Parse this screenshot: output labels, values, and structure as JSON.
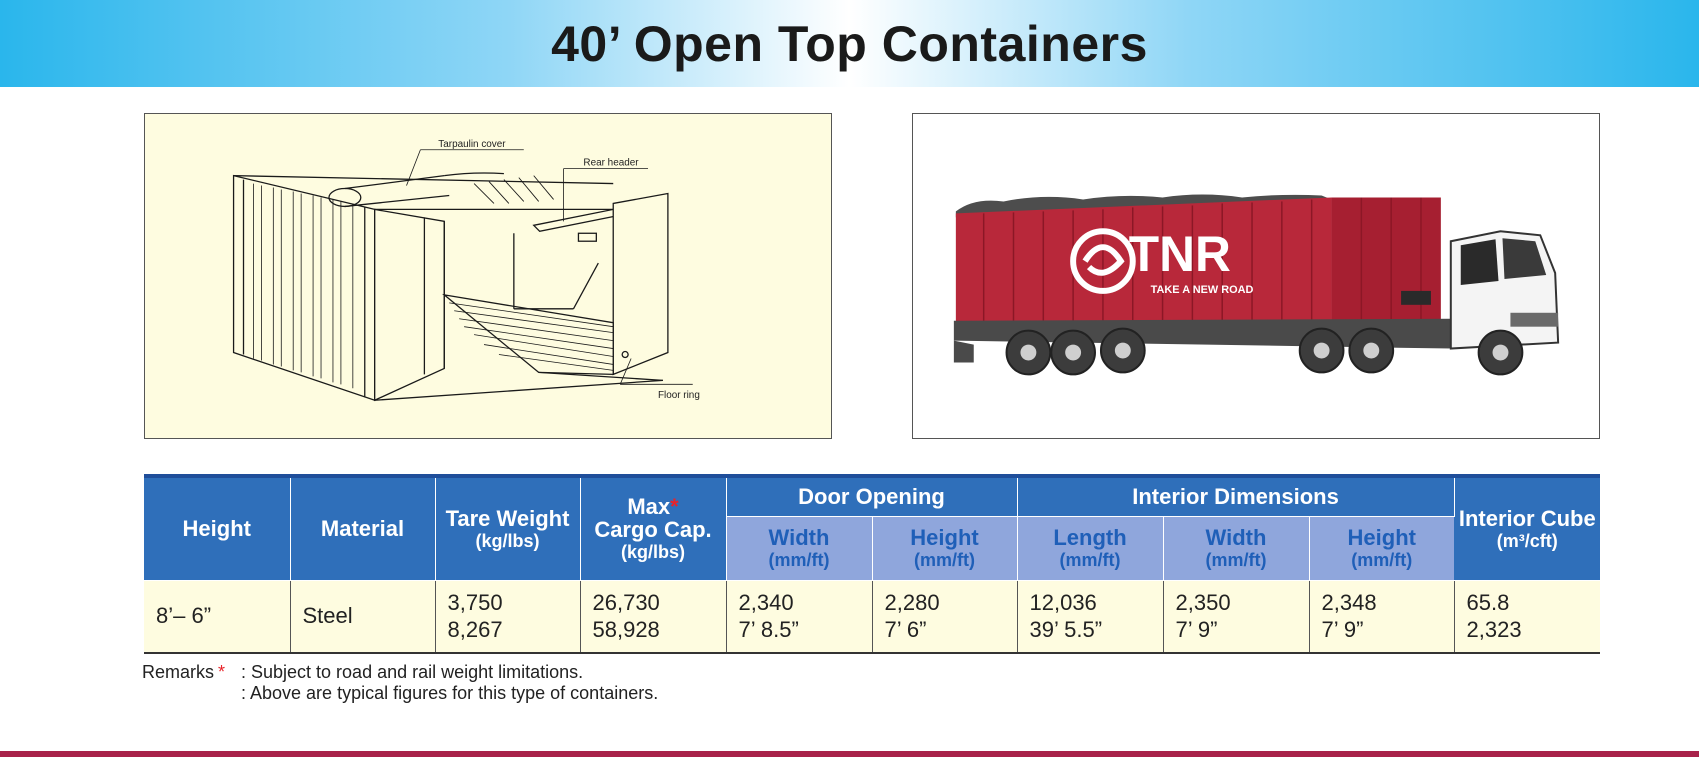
{
  "title": "40’ Open Top Containers",
  "diagram": {
    "labels": {
      "tarpaulin": "Tarpaulin cover",
      "rear_header": "Rear header",
      "floor_ring": "Floor ring"
    }
  },
  "truck": {
    "brand": "TNR",
    "tagline": "TAKE A NEW ROAD",
    "colors": {
      "container": "#b8283a",
      "chassis": "#4a4a4a",
      "cab": "#f4f4f4"
    }
  },
  "table": {
    "headers": {
      "height": "Height",
      "material": "Material",
      "tare": "Tare Weight",
      "tare_unit": "(kg/lbs)",
      "max": "Max",
      "max_star": "*",
      "max2": "Cargo Cap.",
      "max_unit": "(kg/lbs)",
      "door": "Door Opening",
      "interior": "Interior Dimensions",
      "cube": "Interior Cube",
      "cube_unit": "(m³/cft)",
      "width": "Width",
      "height_sub": "Height",
      "length": "Length",
      "mmft": "(mm/ft)"
    },
    "row": {
      "height": "8’– 6”",
      "material": "Steel",
      "tare": [
        "3,750",
        "8,267"
      ],
      "max": [
        "26,730",
        "58,928"
      ],
      "door_width": [
        "2,340",
        "7’ 8.5”"
      ],
      "door_height": [
        "2,280",
        "7’ 6”"
      ],
      "int_length": [
        "12,036",
        "39’ 5.5”"
      ],
      "int_width": [
        "2,350",
        "7’ 9”"
      ],
      "int_height": [
        "2,348",
        "7’ 9”"
      ],
      "cube": [
        "65.8",
        "2,323"
      ]
    }
  },
  "remarks": {
    "label": "Remarks",
    "star": "*",
    "line1": ": Subject to road and rail weight limitations.",
    "line2": ": Above are typical figures for this type of containers."
  },
  "colors": {
    "header_blue": "#2f6fba",
    "sub_header": "#8fa6dc",
    "cell_bg": "#fefce0",
    "accent_red": "#e8232a",
    "footer": "#a8224a"
  }
}
